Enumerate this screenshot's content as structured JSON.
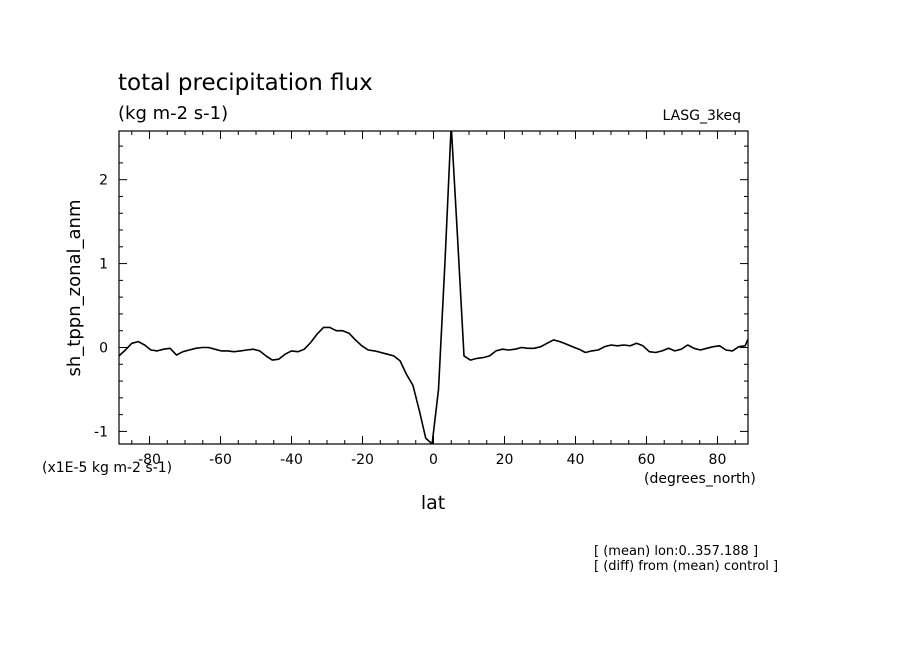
{
  "chart_data": {
    "type": "line",
    "title": "total precipitation flux",
    "subtitle": "(kg m-2 s-1)",
    "run_label": "LASG_3keq",
    "xlabel": "lat",
    "x_units": "(degrees_north)",
    "ylabel": "sh_tppn_zonal_anm",
    "y_scale_note": "(x1E-5 kg m-2 s-1)",
    "xlim": [
      -88.6,
      88.6
    ],
    "ylim": [
      -1.15,
      2.58
    ],
    "x_ticks": [
      -80,
      -60,
      -40,
      -20,
      0,
      20,
      40,
      60,
      80
    ],
    "x_tick_labels": [
      "-80",
      "-60",
      "-40",
      "-20",
      "0",
      "20",
      "40",
      "60",
      "80"
    ],
    "y_ticks": [
      -1,
      0,
      1,
      2
    ],
    "y_tick_labels": [
      "-1",
      "0",
      "1",
      "2"
    ],
    "grid": false,
    "annotations": [
      "[ (mean) lon:0..357.188 ]",
      "[ (diff) from (mean) control ]"
    ],
    "series": [
      {
        "x": [
          -88.6,
          -86.8,
          -85,
          -83.2,
          -81.4,
          -79.6,
          -77.8,
          -76,
          -74.2,
          -72.4,
          -70.6,
          -68.8,
          -67,
          -65.2,
          -63.4,
          -61.6,
          -59.8,
          -58,
          -56.2,
          -54.4,
          -52.6,
          -50.8,
          -49,
          -47.2,
          -45.4,
          -43.6,
          -41.8,
          -40,
          -38.2,
          -36.4,
          -34.6,
          -32.8,
          -31,
          -29.2,
          -27.4,
          -25.6,
          -23.8,
          -22,
          -20.2,
          -18.4,
          -16.6,
          -14.8,
          -13,
          -11.2,
          -9.4,
          -7.6,
          -5.8,
          -4,
          -2.2,
          -0.4,
          1.4,
          3.2,
          5,
          6.8,
          8.6,
          10.4,
          12.2,
          14,
          15.8,
          17.6,
          19.4,
          21.2,
          23,
          24.8,
          26.6,
          28.4,
          30.2,
          32,
          33.8,
          35.6,
          37.4,
          39.2,
          41,
          42.8,
          44.6,
          46.4,
          48.2,
          50,
          51.8,
          53.6,
          55.4,
          57.2,
          59,
          60.8,
          62.6,
          64.4,
          66.2,
          68,
          69.8,
          71.6,
          73.4,
          75.2,
          77,
          78.8,
          80.6,
          82.4,
          84.2,
          86,
          87.8,
          88.6
        ],
        "y": [
          -0.1,
          -0.03,
          0.05,
          0.07,
          0.03,
          -0.03,
          -0.04,
          -0.02,
          -0.01,
          -0.09,
          -0.05,
          -0.03,
          -0.01,
          0.0,
          0.0,
          -0.02,
          -0.04,
          -0.04,
          -0.05,
          -0.04,
          -0.03,
          -0.02,
          -0.04,
          -0.1,
          -0.15,
          -0.14,
          -0.08,
          -0.04,
          -0.05,
          -0.02,
          0.06,
          0.16,
          0.24,
          0.24,
          0.2,
          0.2,
          0.17,
          0.09,
          0.02,
          -0.03,
          -0.04,
          -0.06,
          -0.08,
          -0.1,
          -0.16,
          -0.32,
          -0.45,
          -0.75,
          -1.08,
          -1.15,
          -0.5,
          1.0,
          2.65,
          1.3,
          -0.1,
          -0.15,
          -0.13,
          -0.12,
          -0.1,
          -0.04,
          -0.02,
          -0.03,
          -0.02,
          0.0,
          -0.01,
          -0.01,
          0.01,
          0.05,
          0.09,
          0.07,
          0.04,
          0.01,
          -0.02,
          -0.06,
          -0.04,
          -0.03,
          0.01,
          0.03,
          0.02,
          0.03,
          0.02,
          0.05,
          0.02,
          -0.05,
          -0.06,
          -0.04,
          -0.01,
          -0.04,
          -0.02,
          0.03,
          -0.01,
          -0.03,
          -0.01,
          0.01,
          0.02,
          -0.03,
          -0.04,
          0.01,
          0.02,
          0.1
        ]
      }
    ]
  }
}
